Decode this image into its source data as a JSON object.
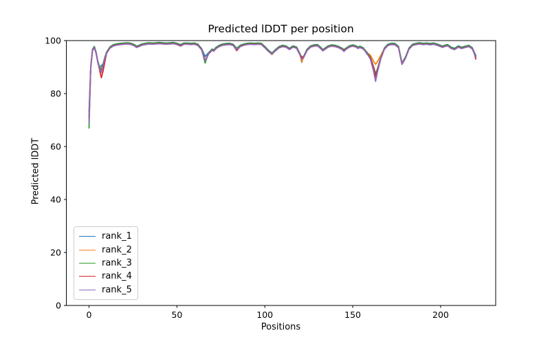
{
  "chart_data": {
    "type": "line",
    "title": "Predicted lDDT per position",
    "xlabel": "Positions",
    "ylabel": "Predicted lDDT",
    "xlim": [
      -12.9,
      231.3
    ],
    "ylim": [
      0,
      100
    ],
    "xticks": [
      0,
      50,
      100,
      150,
      200
    ],
    "yticks": [
      0,
      20,
      40,
      60,
      80,
      100
    ],
    "grid": false,
    "legend_position": "lower left",
    "x": [
      0,
      1,
      2,
      3,
      4,
      5,
      6,
      7,
      8,
      9,
      10,
      12,
      14,
      16,
      18,
      20,
      22,
      24,
      26,
      27,
      28,
      30,
      32,
      34,
      36,
      38,
      40,
      42,
      44,
      46,
      48,
      50,
      52,
      54,
      56,
      58,
      60,
      62,
      64,
      66,
      68,
      70,
      71,
      72,
      74,
      76,
      78,
      80,
      82,
      84,
      86,
      88,
      90,
      92,
      94,
      96,
      98,
      100,
      102,
      104,
      106,
      108,
      110,
      112,
      114,
      116,
      118,
      120,
      121,
      122,
      124,
      126,
      128,
      130,
      132,
      133,
      134,
      136,
      138,
      140,
      142,
      144,
      145,
      146,
      148,
      150,
      152,
      153,
      154,
      156,
      158,
      160,
      162,
      163,
      164,
      166,
      168,
      170,
      172,
      174,
      176,
      178,
      180,
      182,
      184,
      186,
      188,
      190,
      192,
      194,
      196,
      198,
      200,
      201,
      202,
      204,
      206,
      208,
      210,
      212,
      214,
      216,
      218,
      219,
      220
    ],
    "series": [
      {
        "name": "rank_1",
        "color": "#1f77b4",
        "values": [
          73,
          90.2,
          96.7,
          97.8,
          95.7,
          92.2,
          90.0,
          90.5,
          91.2,
          93.7,
          95.7,
          97.7,
          98.5,
          98.8,
          99.0,
          99.1,
          99.2,
          99.0,
          98.4,
          97.9,
          98.1,
          98.7,
          99.0,
          99.2,
          99.1,
          99.2,
          99.3,
          99.2,
          99.1,
          99.2,
          99.3,
          99.0,
          98.5,
          99.1,
          99.1,
          99.0,
          99.1,
          98.6,
          97.0,
          94.0,
          95.4,
          96.8,
          96.5,
          97.3,
          98.2,
          98.7,
          98.9,
          99.0,
          98.6,
          97.1,
          98.2,
          98.7,
          99.0,
          99.1,
          99.0,
          99.1,
          99.0,
          97.8,
          96.4,
          95.3,
          96.6,
          97.7,
          98.2,
          98.0,
          97.1,
          98.0,
          97.6,
          95.0,
          91.8,
          94.0,
          96.7,
          98.0,
          98.4,
          98.5,
          97.3,
          96.6,
          97.1,
          98.0,
          98.4,
          98.2,
          97.8,
          97.1,
          96.6,
          97.1,
          98.0,
          98.4,
          98.0,
          97.5,
          97.9,
          97.3,
          95.0,
          93.8,
          89.7,
          87.5,
          89.2,
          93.7,
          97.2,
          98.6,
          99.0,
          98.9,
          97.8,
          91.6,
          93.8,
          97.2,
          98.6,
          99.0,
          99.2,
          99.0,
          99.1,
          98.9,
          99.1,
          98.7,
          98.2,
          97.9,
          98.2,
          98.5,
          97.5,
          97.1,
          98.0,
          97.5,
          97.9,
          98.2,
          97.3,
          95.8,
          94.3
        ]
      },
      {
        "name": "rank_2",
        "color": "#ff7f0e",
        "values": [
          70,
          89.9,
          96.4,
          97.5,
          95.4,
          91.9,
          89.7,
          89.5,
          90.9,
          93.4,
          95.4,
          97.4,
          98.2,
          98.5,
          98.7,
          98.8,
          98.9,
          98.7,
          98.1,
          97.6,
          97.8,
          98.4,
          98.7,
          98.9,
          98.8,
          98.9,
          99.0,
          98.9,
          98.8,
          98.9,
          99.0,
          98.7,
          98.2,
          98.8,
          98.8,
          98.7,
          98.8,
          98.3,
          96.7,
          92.6,
          95.1,
          96.5,
          96.2,
          97.0,
          97.9,
          98.4,
          98.6,
          98.7,
          98.3,
          96.8,
          97.9,
          98.4,
          98.7,
          98.8,
          98.7,
          98.8,
          98.7,
          97.5,
          96.1,
          94.7,
          96.3,
          97.4,
          97.9,
          97.7,
          96.8,
          97.7,
          97.3,
          94.7,
          92.0,
          93.7,
          96.4,
          97.7,
          98.1,
          98.2,
          97.0,
          96.3,
          96.8,
          97.7,
          98.1,
          97.9,
          97.5,
          96.8,
          96.3,
          96.8,
          97.7,
          98.1,
          97.7,
          97.2,
          97.6,
          97.0,
          95.5,
          94.5,
          92.0,
          91.0,
          92.0,
          94.5,
          96.9,
          98.3,
          98.7,
          98.6,
          97.5,
          91.3,
          93.5,
          96.9,
          98.3,
          98.7,
          98.9,
          98.7,
          98.8,
          98.6,
          98.8,
          98.4,
          97.9,
          97.6,
          97.9,
          98.2,
          97.2,
          96.8,
          97.7,
          97.2,
          97.6,
          97.9,
          97.0,
          95.5,
          93.8
        ]
      },
      {
        "name": "rank_3",
        "color": "#2ca02c",
        "values": [
          67,
          90.1,
          96.6,
          97.7,
          95.6,
          92.1,
          89.9,
          89.0,
          91.1,
          93.6,
          95.6,
          97.6,
          98.4,
          98.7,
          98.9,
          99.0,
          99.1,
          98.9,
          98.3,
          97.8,
          98.0,
          98.6,
          98.9,
          99.1,
          99.0,
          99.1,
          99.2,
          99.1,
          99.0,
          99.1,
          99.2,
          98.9,
          98.4,
          99.0,
          99.0,
          98.9,
          99.0,
          98.5,
          96.9,
          91.5,
          95.3,
          96.7,
          96.4,
          97.2,
          98.1,
          98.6,
          98.8,
          98.9,
          98.5,
          97.0,
          98.1,
          98.6,
          98.9,
          99.0,
          98.9,
          99.0,
          98.9,
          97.7,
          96.3,
          95.2,
          96.5,
          97.6,
          98.1,
          97.9,
          97.0,
          97.9,
          97.5,
          94.9,
          93.5,
          93.9,
          96.6,
          97.9,
          98.3,
          98.4,
          97.2,
          96.5,
          97.0,
          97.9,
          98.3,
          98.1,
          97.7,
          97.0,
          96.5,
          97.0,
          97.9,
          98.3,
          97.9,
          97.4,
          97.8,
          97.2,
          95.7,
          93.7,
          89.6,
          87.0,
          89.1,
          93.6,
          97.1,
          98.5,
          98.9,
          98.8,
          97.7,
          91.5,
          93.7,
          97.1,
          98.5,
          98.9,
          99.1,
          98.9,
          99.0,
          98.8,
          99.0,
          98.6,
          98.1,
          97.8,
          98.1,
          98.4,
          97.4,
          97.0,
          97.9,
          97.4,
          97.8,
          98.1,
          97.2,
          95.7,
          94.0
        ]
      },
      {
        "name": "rank_4",
        "color": "#d62728",
        "values": [
          71,
          89.8,
          96.3,
          97.4,
          95.3,
          91.8,
          89.0,
          86.0,
          88.5,
          92.0,
          95.3,
          97.3,
          98.1,
          98.4,
          98.6,
          98.7,
          98.8,
          98.6,
          98.0,
          97.5,
          97.7,
          98.3,
          98.6,
          98.8,
          98.7,
          98.8,
          98.9,
          98.8,
          98.7,
          98.8,
          98.9,
          98.6,
          98.1,
          98.7,
          98.7,
          98.6,
          98.7,
          98.2,
          96.6,
          92.5,
          95.0,
          96.4,
          96.1,
          96.9,
          97.8,
          98.3,
          98.5,
          98.6,
          98.2,
          96.2,
          97.8,
          98.3,
          98.6,
          98.7,
          98.6,
          98.7,
          98.6,
          97.4,
          96.0,
          94.9,
          96.2,
          97.3,
          97.8,
          97.6,
          96.7,
          97.6,
          97.2,
          94.6,
          94.0,
          93.6,
          96.3,
          97.6,
          98.0,
          98.1,
          96.9,
          96.2,
          96.7,
          97.6,
          98.0,
          97.8,
          97.4,
          96.7,
          96.2,
          96.7,
          97.6,
          98.0,
          97.6,
          97.1,
          97.5,
          96.9,
          95.4,
          93.4,
          89.3,
          86.3,
          88.8,
          93.3,
          96.8,
          98.2,
          98.6,
          98.5,
          97.4,
          91.0,
          93.4,
          96.8,
          98.2,
          98.6,
          98.8,
          98.6,
          98.7,
          98.5,
          98.7,
          98.3,
          97.8,
          97.5,
          97.8,
          98.1,
          97.1,
          96.7,
          97.6,
          97.1,
          97.5,
          97.8,
          96.9,
          95.4,
          93.0
        ]
      },
      {
        "name": "rank_5",
        "color": "#9467bd",
        "values": [
          69,
          89.7,
          96.2,
          97.3,
          95.2,
          91.7,
          89.5,
          88.0,
          90.7,
          93.2,
          95.2,
          97.2,
          98.0,
          98.3,
          98.5,
          98.6,
          98.7,
          98.5,
          97.9,
          97.4,
          97.6,
          98.2,
          98.5,
          98.7,
          98.6,
          98.7,
          98.8,
          98.7,
          98.6,
          98.7,
          98.8,
          98.5,
          97.9,
          98.6,
          98.6,
          98.5,
          98.6,
          98.1,
          96.5,
          92.4,
          94.9,
          96.3,
          96.0,
          96.8,
          97.7,
          98.2,
          98.4,
          98.5,
          98.1,
          96.6,
          97.7,
          98.2,
          98.5,
          98.6,
          98.5,
          98.6,
          98.5,
          97.3,
          95.9,
          94.9,
          96.1,
          97.2,
          97.7,
          97.5,
          96.6,
          97.5,
          97.1,
          94.5,
          93.0,
          93.5,
          96.2,
          97.5,
          97.9,
          98.0,
          96.8,
          96.1,
          96.6,
          97.5,
          97.9,
          97.7,
          97.3,
          96.6,
          95.9,
          96.6,
          97.5,
          97.9,
          97.5,
          97.0,
          97.4,
          96.8,
          95.3,
          93.0,
          88.0,
          84.6,
          88.0,
          93.2,
          96.7,
          98.1,
          98.5,
          98.4,
          97.3,
          91.1,
          93.3,
          96.7,
          98.1,
          98.5,
          98.7,
          98.5,
          98.6,
          98.4,
          98.6,
          98.2,
          97.7,
          97.4,
          97.7,
          98.0,
          97.0,
          96.6,
          97.5,
          97.0,
          97.4,
          97.7,
          96.8,
          95.3,
          93.6
        ]
      }
    ]
  }
}
